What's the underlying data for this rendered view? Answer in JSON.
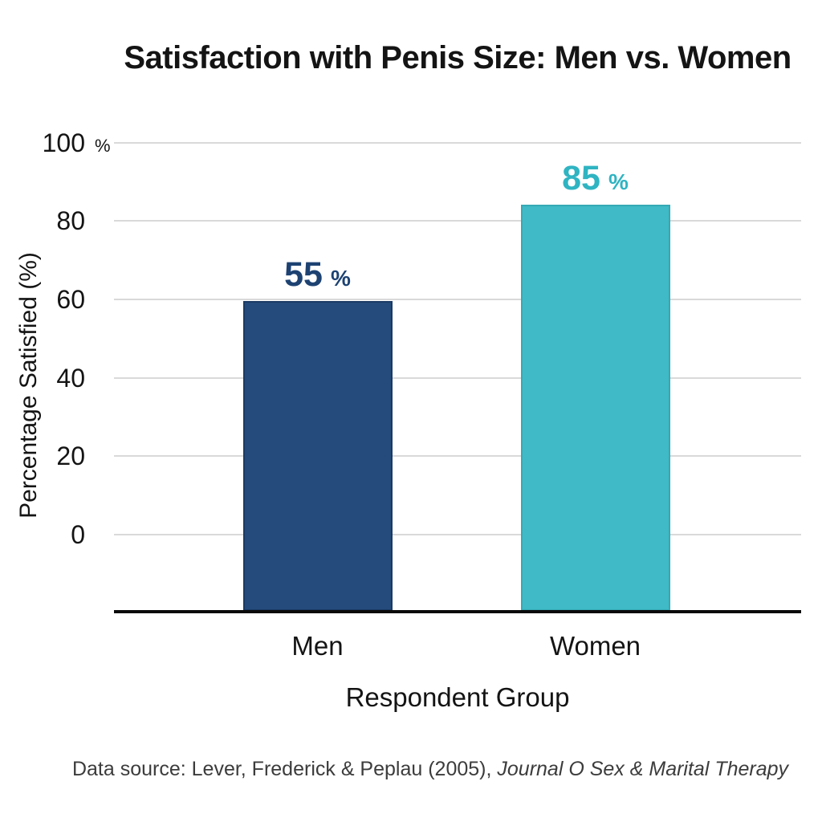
{
  "figure": {
    "source_note_prefix": "Data source: Lever, Frederick & Peplau (2005), ",
    "source_note_italic": "Journal O Sex & Marital Therapy"
  },
  "chart_data": {
    "type": "bar",
    "title": "Satisfaction with Penis Size: Men vs. Women",
    "categories": [
      "Men",
      "Women"
    ],
    "values": [
      55,
      85
    ],
    "value_suffix": "%",
    "xlabel": "Respondent Group",
    "ylabel": "Percentage Satisfied (%)",
    "yticks": [
      100,
      80,
      60,
      40,
      20,
      0
    ],
    "ytick_top_suffix": "%",
    "ylim": [
      0,
      100
    ],
    "grid": true,
    "legend": false,
    "bar_colors": [
      "#254B7C",
      "#3FBAC6"
    ],
    "bar_border_colors": [
      "#1A3A64",
      "#35A9B6"
    ],
    "value_label_colors": [
      "#1D4272",
      "#2FB4C2"
    ],
    "grid_color": "#d9d9d9",
    "axis_line_color": "#0a0a0a",
    "drawn_bar_top_pct": [
      59.6,
      84.1
    ],
    "drawn_baseline_pct": -19.5
  }
}
